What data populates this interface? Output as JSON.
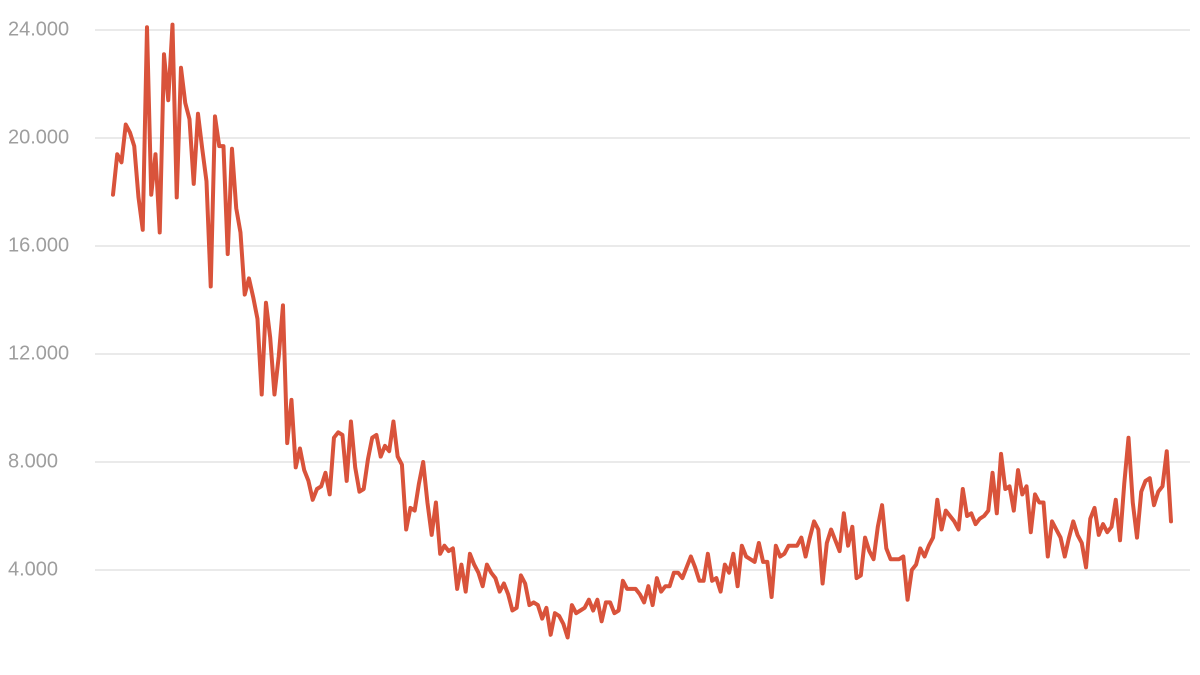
{
  "chart_data": {
    "type": "line",
    "color": "#d9533b",
    "grid": true,
    "ylim": [
      0,
      25000
    ],
    "yticks": [
      {
        "value": 4000,
        "label": "4.000"
      },
      {
        "value": 8000,
        "label": "8.000"
      },
      {
        "value": 12000,
        "label": "12.000"
      },
      {
        "value": 16000,
        "label": "16.000"
      },
      {
        "value": 20000,
        "label": "20.000"
      },
      {
        "value": 24000,
        "label": "24.000"
      }
    ],
    "values": [
      17900,
      19400,
      19100,
      20500,
      20200,
      19700,
      17800,
      16600,
      24100,
      17900,
      19400,
      16500,
      23100,
      21400,
      24200,
      17800,
      22600,
      21300,
      20700,
      18300,
      20900,
      19600,
      18400,
      14500,
      20800,
      19700,
      19700,
      15700,
      19600,
      17400,
      16500,
      14200,
      14800,
      14100,
      13300,
      10500,
      13900,
      12600,
      10500,
      11900,
      13800,
      8700,
      10300,
      7800,
      8500,
      7700,
      7300,
      6600,
      7000,
      7100,
      7600,
      6800,
      8900,
      9100,
      9000,
      7300,
      9500,
      7800,
      6900,
      7000,
      8100,
      8900,
      9000,
      8200,
      8600,
      8400,
      9500,
      8200,
      7900,
      5500,
      6300,
      6200,
      7200,
      8000,
      6500,
      5300,
      6500,
      4600,
      4900,
      4700,
      4800,
      3300,
      4200,
      3200,
      4600,
      4200,
      3900,
      3400,
      4200,
      3900,
      3700,
      3200,
      3500,
      3100,
      2500,
      2600,
      3800,
      3500,
      2700,
      2800,
      2700,
      2200,
      2600,
      1600,
      2400,
      2300,
      2000,
      1500,
      2700,
      2400,
      2500,
      2600,
      2900,
      2500,
      2900,
      2100,
      2800,
      2800,
      2400,
      2500,
      3600,
      3300,
      3300,
      3300,
      3100,
      2800,
      3400,
      2700,
      3700,
      3200,
      3400,
      3400,
      3900,
      3900,
      3700,
      4100,
      4500,
      4100,
      3600,
      3600,
      4600,
      3600,
      3700,
      3200,
      4200,
      3900,
      4600,
      3400,
      4900,
      4500,
      4400,
      4300,
      5000,
      4300,
      4300,
      3000,
      4900,
      4500,
      4600,
      4900,
      4900,
      4900,
      5200,
      4500,
      5200,
      5800,
      5500,
      3500,
      5000,
      5500,
      5100,
      4700,
      6100,
      4900,
      5600,
      3700,
      3800,
      5200,
      4700,
      4400,
      5600,
      6400,
      4800,
      4400,
      4400,
      4400,
      4500,
      2900,
      4000,
      4200,
      4800,
      4500,
      4900,
      5200,
      6600,
      5500,
      6200,
      6000,
      5800,
      5500,
      7000,
      6000,
      6100,
      5700,
      5900,
      6000,
      6200,
      7600,
      6100,
      8300,
      7000,
      7100,
      6200,
      7700,
      6800,
      7100,
      5400,
      6800,
      6500,
      6500,
      4500,
      5800,
      5500,
      5200,
      4500,
      5200,
      5800,
      5300,
      5000,
      4100,
      5900,
      6300,
      5300,
      5700,
      5400,
      5600,
      6600,
      5100,
      7200,
      8900,
      6500,
      5200,
      6900,
      7300,
      7400,
      6400,
      6900,
      7100,
      8400,
      5800
    ]
  }
}
